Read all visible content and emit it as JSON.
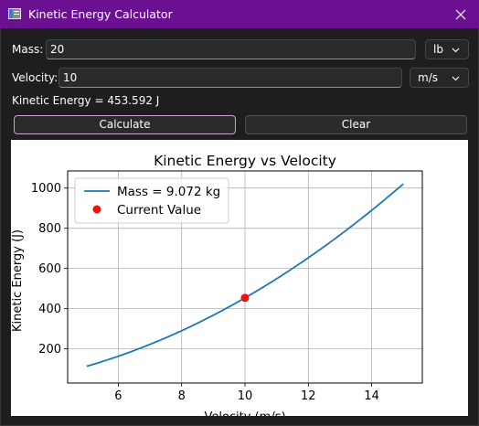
{
  "window": {
    "title": "Kinetic Energy Calculator",
    "icon": "app-window-icon",
    "close_icon": "close-icon",
    "title_bar_color": "#6a1090"
  },
  "form": {
    "mass_label": "Mass:",
    "mass_value": "20",
    "mass_unit": "lb",
    "velocity_label": "Velocity:",
    "velocity_value": "10",
    "velocity_unit": "m/s",
    "result_text": "Kinetic Energy = 453.592 J"
  },
  "buttons": {
    "calculate": "Calculate",
    "clear": "Clear"
  },
  "chart_data": {
    "type": "line",
    "title": "Kinetic Energy vs Velocity",
    "xlabel": "Velocity (m/s)",
    "ylabel": "Kinetic Energy (J)",
    "xlim": [
      4.4,
      15.6
    ],
    "ylim": [
      30,
      1085
    ],
    "xticks": [
      "6",
      "8",
      "10",
      "12",
      "14"
    ],
    "yticks": [
      "200",
      "400",
      "600",
      "800",
      "1000"
    ],
    "grid": true,
    "legend_position": "top-left",
    "series": [
      {
        "name": "Mass = 9.072 kg",
        "color": "#1f77b4",
        "x": [
          5,
          6,
          7,
          8,
          9,
          10,
          11,
          12,
          13,
          14,
          15
        ],
        "y": [
          113.4,
          163.3,
          222.3,
          290.3,
          367.4,
          453.6,
          548.8,
          653.2,
          766.6,
          889.0,
          1020.6
        ]
      }
    ],
    "current_point": {
      "name": "Current Value",
      "color": "#ee1111",
      "x": 10,
      "y": 453.592
    }
  }
}
